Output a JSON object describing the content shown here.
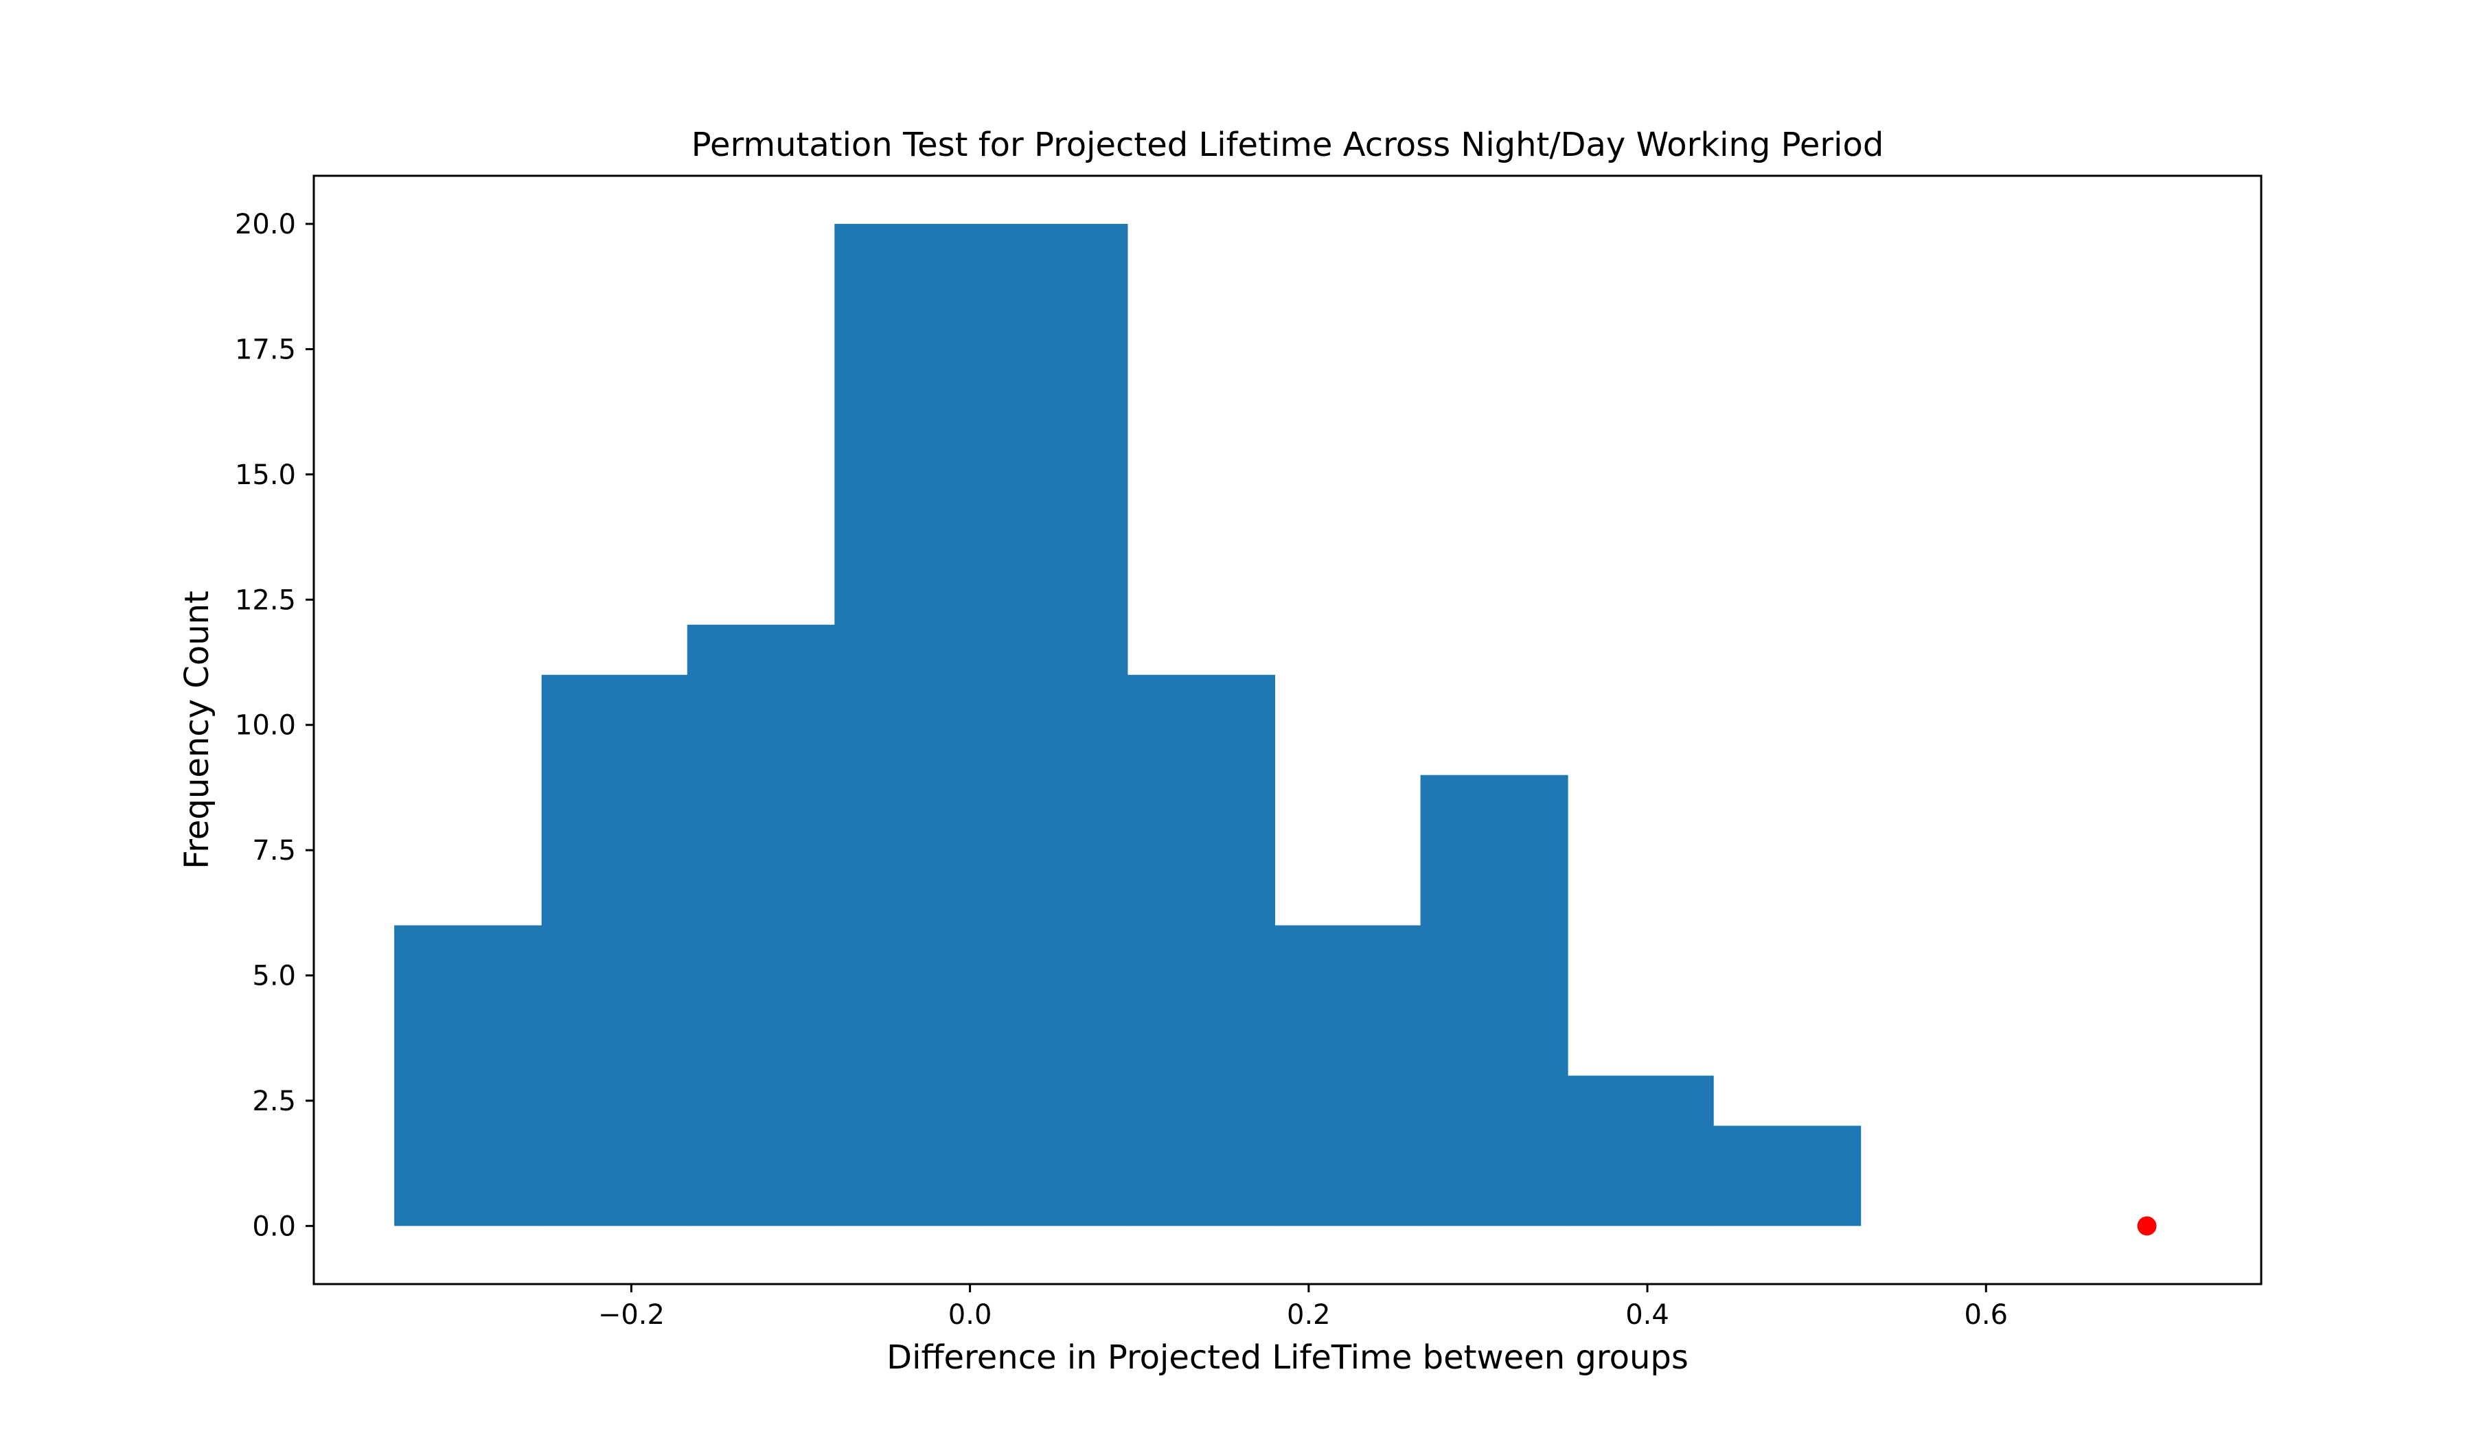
{
  "chart_data": {
    "type": "bar",
    "title": "Permutation Test for Projected Lifetime Across Night/Day Working Period",
    "xlabel": "Difference in Projected LifeTime between groups",
    "ylabel": "Frequency Count",
    "xlim": [
      -0.3875,
      0.7625
    ],
    "ylim": [
      -1.16,
      20.96
    ],
    "xticks": [
      -0.2,
      0.0,
      0.2,
      0.4,
      0.6
    ],
    "xtick_labels": [
      "−0.2",
      "0.0",
      "0.2",
      "0.4",
      "0.6"
    ],
    "yticks": [
      0.0,
      2.5,
      5.0,
      7.5,
      10.0,
      12.5,
      15.0,
      17.5,
      20.0
    ],
    "ytick_labels": [
      "0.0",
      "2.5",
      "5.0",
      "7.5",
      "10.0",
      "12.5",
      "15.0",
      "17.5",
      "20.0"
    ],
    "bin_edges": [
      -0.34,
      -0.253,
      -0.167,
      -0.08,
      0.007,
      0.093,
      0.18,
      0.266,
      0.353,
      0.439,
      0.526
    ],
    "values": [
      6,
      11,
      12,
      20,
      20,
      11,
      6,
      9,
      3,
      2
    ],
    "observed_point": {
      "x": 0.695,
      "y": 0
    },
    "grid": false,
    "colors": {
      "bars": "#1f77b4",
      "observed_point": "#ff0000"
    }
  }
}
